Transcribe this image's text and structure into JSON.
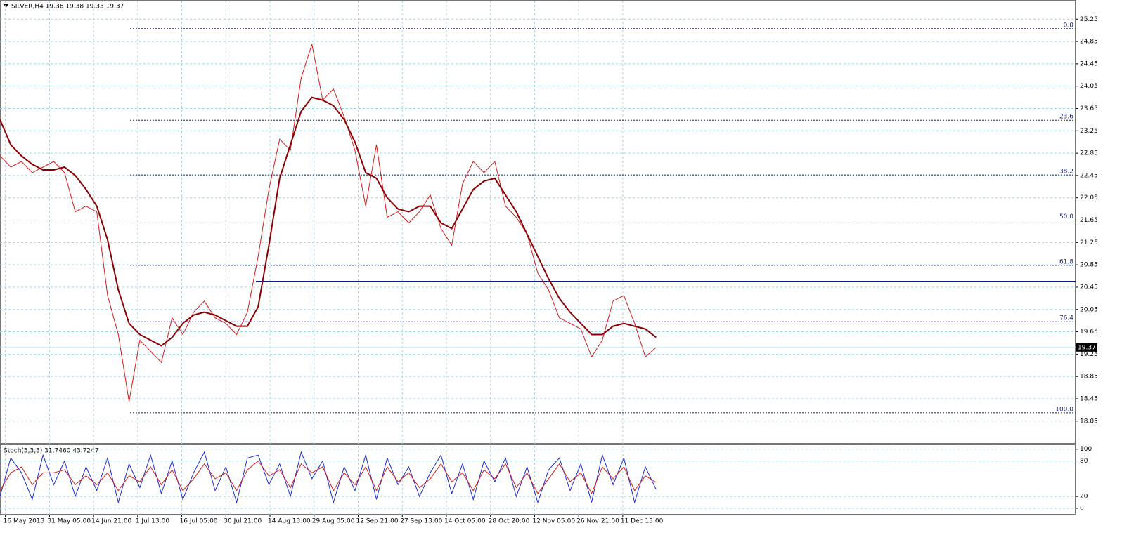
{
  "chart_data": [
    {
      "type": "line",
      "title": "SILVER,H4  19.36 19.38 19.33 19.37",
      "x": [
        0,
        1,
        2,
        3,
        4,
        5,
        6,
        7,
        8,
        9,
        10,
        11,
        12,
        13,
        14,
        15,
        16,
        17,
        18,
        19,
        20,
        21,
        22,
        23,
        24,
        25,
        26,
        27,
        28,
        29,
        30,
        31,
        32,
        33,
        34,
        35,
        36,
        37,
        38,
        39,
        40,
        41,
        42,
        43,
        44,
        45,
        46,
        47,
        48,
        49,
        50,
        51,
        52,
        53,
        54,
        55,
        56,
        57,
        58,
        59,
        60,
        61
      ],
      "xlim": [
        0,
        100
      ],
      "ylim": [
        17.67,
        25.53
      ],
      "yticks": [
        18.05,
        18.45,
        18.85,
        19.25,
        19.65,
        20.05,
        20.45,
        20.85,
        21.25,
        21.65,
        22.05,
        22.45,
        22.85,
        23.25,
        23.65,
        24.05,
        24.45,
        24.85,
        25.25
      ],
      "grid": true,
      "series": [
        {
          "color": "#d41c1c",
          "values": [
            22.8,
            22.6,
            22.7,
            22.5,
            22.6,
            22.7,
            22.5,
            21.8,
            21.9,
            21.8,
            20.3,
            19.6,
            18.4,
            19.5,
            19.3,
            19.1,
            19.9,
            19.6,
            20.0,
            20.2,
            19.9,
            19.8,
            19.6,
            20.0,
            21.0,
            22.2,
            23.1,
            22.9,
            24.2,
            24.8,
            23.8,
            24.0,
            23.5,
            22.9,
            21.9,
            23.0,
            21.7,
            21.8,
            21.6,
            21.8,
            22.1,
            21.5,
            21.2,
            22.3,
            22.7,
            22.5,
            22.7,
            21.9,
            21.7,
            21.4,
            20.7,
            20.4,
            19.9,
            19.8,
            19.7,
            19.2,
            19.5,
            20.2,
            20.3,
            19.8,
            19.2,
            19.37
          ]
        },
        {
          "color": "#8b0000",
          "values": [
            23.45,
            23.0,
            22.8,
            22.65,
            22.55,
            22.55,
            22.6,
            22.45,
            22.2,
            21.9,
            21.3,
            20.4,
            19.8,
            19.6,
            19.5,
            19.4,
            19.55,
            19.8,
            19.95,
            20.0,
            19.95,
            19.85,
            19.75,
            19.75,
            20.1,
            21.2,
            22.4,
            23.0,
            23.6,
            23.85,
            23.8,
            23.7,
            23.45,
            23.05,
            22.5,
            22.4,
            22.05,
            21.85,
            21.8,
            21.9,
            21.9,
            21.6,
            21.5,
            21.85,
            22.2,
            22.35,
            22.4,
            22.1,
            21.8,
            21.4,
            21.0,
            20.6,
            20.25,
            20.0,
            19.8,
            19.6,
            19.6,
            19.75,
            19.8,
            19.75,
            19.7,
            19.55
          ]
        }
      ],
      "fib_levels": [
        {
          "value": 25.08,
          "label": "0.0"
        },
        {
          "value": 23.44,
          "label": "23.6"
        },
        {
          "value": 22.46,
          "label": "38.2"
        },
        {
          "value": 21.65,
          "label": "50.0"
        },
        {
          "value": 20.84,
          "label": "61.8"
        },
        {
          "value": 19.83,
          "label": "76.4"
        },
        {
          "value": 18.2,
          "label": "100.0"
        }
      ],
      "fib_color": "#1a237e",
      "hline": 20.55,
      "hline_color": "#0d1a8c",
      "last_price": 19.37
    },
    {
      "type": "line",
      "title": "Stoch(5,3,3) 31.7460 43.7247",
      "x": [
        0,
        1,
        2,
        3,
        4,
        5,
        6,
        7,
        8,
        9,
        10,
        11,
        12,
        13,
        14,
        15,
        16,
        17,
        18,
        19,
        20,
        21,
        22,
        23,
        24,
        25,
        26,
        27,
        28,
        29,
        30,
        31,
        32,
        33,
        34,
        35,
        36,
        37,
        38,
        39,
        40,
        41,
        42,
        43,
        44,
        45,
        46,
        47,
        48,
        49,
        50,
        51,
        52,
        53,
        54,
        55,
        56,
        57,
        58,
        59,
        60,
        61
      ],
      "xlim": [
        0,
        100
      ],
      "xticks": [
        {
          "value": 0.5,
          "label": "16 May 2013"
        },
        {
          "value": 4.6,
          "label": "31 May 05:00"
        },
        {
          "value": 8.7,
          "label": "14 Jun 21:00"
        },
        {
          "value": 12.8,
          "label": "1 Jul 13:00"
        },
        {
          "value": 16.9,
          "label": "16 Jul 05:00"
        },
        {
          "value": 21,
          "label": "30 Jul 21:00"
        },
        {
          "value": 25.1,
          "label": "14 Aug 13:00"
        },
        {
          "value": 29.2,
          "label": "29 Aug 05:00"
        },
        {
          "value": 33.3,
          "label": "12 Sep 21:00"
        },
        {
          "value": 37.4,
          "label": "27 Sep 13:00"
        },
        {
          "value": 41.5,
          "label": "14 Oct 05:00"
        },
        {
          "value": 45.6,
          "label": "28 Oct 20:00"
        },
        {
          "value": 49.7,
          "label": "12 Nov 05:00"
        },
        {
          "value": 53.8,
          "label": "26 Nov 21:00"
        },
        {
          "value": 57.9,
          "label": "11 Dec 13:00"
        }
      ],
      "ylim": [
        -9.5,
        108
      ],
      "yticks": [
        0,
        20,
        80,
        100
      ],
      "grid": true,
      "series": [
        {
          "color": "#1c2ad4",
          "values": [
            20,
            85,
            60,
            15,
            90,
            40,
            80,
            20,
            70,
            30,
            85,
            10,
            75,
            35,
            90,
            25,
            80,
            15,
            60,
            95,
            30,
            70,
            10,
            85,
            90,
            40,
            75,
            20,
            95,
            50,
            80,
            10,
            70,
            30,
            90,
            15,
            85,
            40,
            70,
            20,
            60,
            90,
            25,
            75,
            15,
            80,
            45,
            85,
            20,
            70,
            10,
            65,
            85,
            30,
            75,
            10,
            90,
            40,
            85,
            10,
            70,
            32
          ]
        },
        {
          "color": "#d41c1c",
          "values": [
            30,
            60,
            70,
            40,
            60,
            60,
            65,
            40,
            55,
            40,
            60,
            30,
            55,
            45,
            70,
            40,
            65,
            30,
            50,
            75,
            50,
            60,
            30,
            65,
            80,
            55,
            65,
            35,
            75,
            60,
            70,
            30,
            60,
            40,
            70,
            30,
            70,
            45,
            60,
            35,
            50,
            75,
            45,
            60,
            30,
            65,
            50,
            75,
            35,
            60,
            25,
            50,
            75,
            45,
            60,
            25,
            70,
            50,
            70,
            30,
            55,
            44
          ]
        }
      ]
    }
  ]
}
